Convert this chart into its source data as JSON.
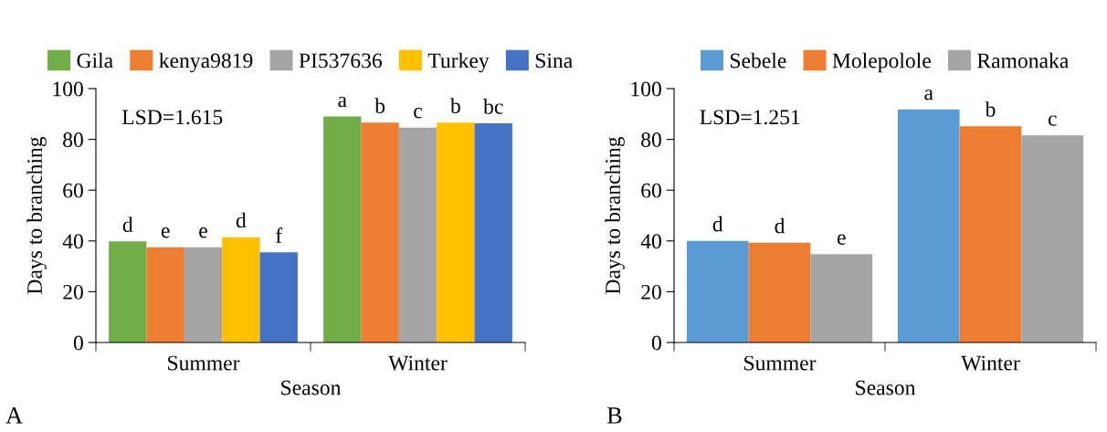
{
  "chart_data": [
    {
      "type": "bar",
      "xlabel": "Season",
      "ylabel": "Days to branching",
      "categories": [
        "Summer",
        "Winter"
      ],
      "ylim": [
        0,
        100
      ],
      "yticks": [
        0,
        20,
        40,
        60,
        80,
        100
      ],
      "grid": false,
      "legend": "top",
      "annotations": [
        "LSD=1.615",
        "A"
      ],
      "series": [
        {
          "name": "Gila",
          "color": "#70ad47",
          "values": [
            39.8,
            89
          ],
          "value_labels": [
            "d",
            "a"
          ]
        },
        {
          "name": "kenya9819",
          "color": "#ed7d31",
          "values": [
            37.5,
            86.6
          ],
          "value_labels": [
            "e",
            "b"
          ]
        },
        {
          "name": "PI537636",
          "color": "#a5a5a5",
          "values": [
            37.5,
            84.6
          ],
          "value_labels": [
            "e",
            "c"
          ]
        },
        {
          "name": "Turkey",
          "color": "#ffc000",
          "values": [
            41.5,
            86.6
          ],
          "value_labels": [
            "d",
            "b"
          ]
        },
        {
          "name": "Sina",
          "color": "#4472c4",
          "values": [
            35.5,
            86.3
          ],
          "value_labels": [
            "f",
            "bc"
          ]
        }
      ]
    },
    {
      "type": "bar",
      "xlabel": "Season",
      "ylabel": "Days to branching",
      "categories": [
        "Summer",
        "Winter"
      ],
      "ylim": [
        0,
        100
      ],
      "yticks": [
        0,
        20,
        40,
        60,
        80,
        100
      ],
      "grid": false,
      "legend": "top",
      "annotations": [
        "LSD=1.251",
        "B"
      ],
      "series": [
        {
          "name": "Sebele",
          "color": "#5b9bd5",
          "values": [
            40,
            91.8
          ],
          "value_labels": [
            "d",
            "a"
          ]
        },
        {
          "name": "Molepolole",
          "color": "#ed7d31",
          "values": [
            39.3,
            85.2
          ],
          "value_labels": [
            "d",
            "b"
          ]
        },
        {
          "name": "Ramonaka",
          "color": "#a5a5a5",
          "values": [
            34.8,
            81.6
          ],
          "value_labels": [
            "e",
            "c"
          ]
        }
      ]
    }
  ]
}
